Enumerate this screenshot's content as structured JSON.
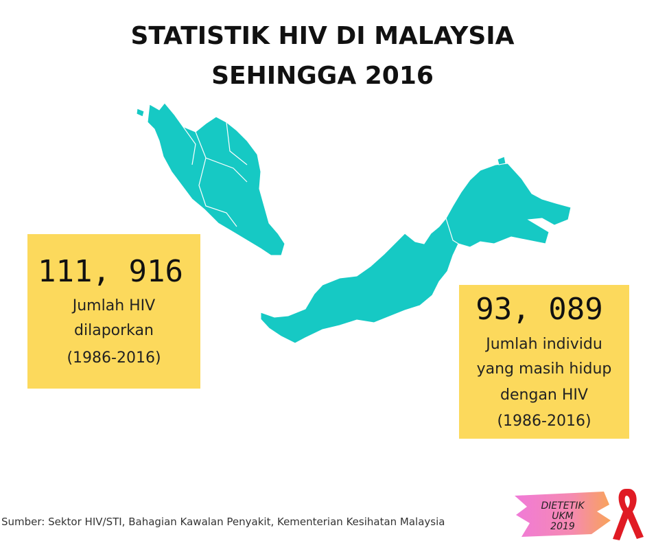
{
  "header": {
    "title_lines": [
      "STATISTIK HIV DI MALAYSIA",
      "SEHINGGA 2016"
    ]
  },
  "stats": [
    {
      "number": "111, 916",
      "lines": [
        "Jumlah HIV",
        "dilaporkan",
        "(1986-2016)"
      ]
    },
    {
      "number": "93, 089",
      "lines": [
        "Jumlah individu",
        "yang masih hidup",
        "dengan HIV",
        "(1986-2016)"
      ]
    }
  ],
  "source": "Sumber: Sektor HIV/STI, Bahagian Kawalan Penyakit, Kementerian Kesihatan Malaysia",
  "logo": {
    "lines": [
      "DIETETIK",
      "UKM",
      "2019"
    ]
  }
}
